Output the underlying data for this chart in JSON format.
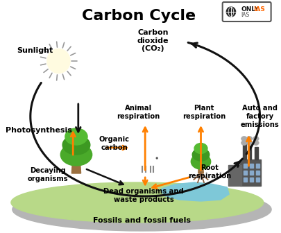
{
  "title": "Carbon Cycle",
  "bg_color": "#ffffff",
  "ground_color": "#b8d988",
  "ground_shadow_color": "#c0c0c0",
  "water_color": "#7ec8d8",
  "labels": {
    "sunlight": "Sunlight",
    "photosynthesis": "Photosynthesis",
    "co2": "Carbon\ndioxide\n(CO₂)",
    "animal_resp": "Animal\nrespiration",
    "plant_resp": "Plant\nrespiration",
    "auto_factory": "Auto and\nfactory\nemissions",
    "organic_carbon": "Organic\ncarbon",
    "decaying": "Decaying\norganisms",
    "dead_organisms": "Dead organisms and\nwaste products",
    "root_resp": "Root\nrespiration",
    "fossils": "Fossils and fossil fuels"
  },
  "orange": "#FF8000",
  "black": "#111111",
  "logo_text": "ONLYIAS",
  "title_fontsize": 16,
  "label_fontsize": 7.2,
  "bold_label_fontsize": 8.0
}
